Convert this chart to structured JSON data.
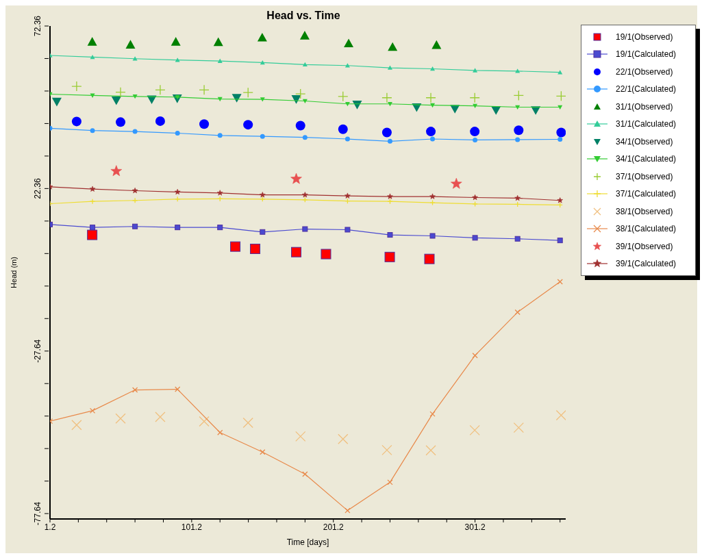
{
  "chart_data": {
    "type": "scatter",
    "title": "Head vs. Time",
    "xlabel": "Time [days]",
    "ylabel": "Head (m)",
    "xlim": [
      1.2,
      365.2
    ],
    "ylim": [
      -79.3,
      72.36
    ],
    "xticks": [
      1.2,
      {
        "value": 21.2,
        "label": null
      },
      {
        "value": 41.2,
        "label": null
      },
      {
        "value": 61.2,
        "label": null
      },
      {
        "value": 81.2,
        "label": null
      },
      101.2,
      {
        "value": 121.2,
        "label": null
      },
      {
        "value": 141.2,
        "label": null
      },
      {
        "value": 161.2,
        "label": null
      },
      {
        "value": 181.2,
        "label": null
      },
      201.2,
      {
        "value": 221.2,
        "label": null
      },
      {
        "value": 241.2,
        "label": null
      },
      {
        "value": 261.2,
        "label": null
      },
      {
        "value": 281.2,
        "label": null
      },
      301.2,
      {
        "value": 321.2,
        "label": null
      },
      {
        "value": 341.2,
        "label": null
      },
      {
        "value": 361.2,
        "label": null
      }
    ],
    "yticks": [
      72.36,
      {
        "value": 62.36,
        "label": null
      },
      {
        "value": 52.36,
        "label": null
      },
      {
        "value": 42.36,
        "label": null
      },
      {
        "value": 32.36,
        "label": null
      },
      22.36,
      {
        "value": 12.36,
        "label": null
      },
      {
        "value": 2.36,
        "label": null
      },
      {
        "value": -7.64,
        "label": null
      },
      {
        "value": -17.64,
        "label": null
      },
      -27.64,
      {
        "value": -37.64,
        "label": null
      },
      {
        "value": -47.64,
        "label": null
      },
      {
        "value": -57.64,
        "label": null
      },
      {
        "value": -67.64,
        "label": null
      },
      -77.64
    ],
    "grid": false,
    "legend": "right",
    "series": [
      {
        "name": "19/1(Observed)",
        "marker": "square",
        "color": "#ff0000",
        "x": [
          31,
          132,
          146,
          175,
          196,
          241,
          269
        ],
        "values": [
          8.1,
          4.5,
          3.8,
          2.8,
          2.2,
          1.3,
          0.7
        ]
      },
      {
        "name": "19/1(Calculated)",
        "type": "line",
        "marker": "square",
        "color": "#4a4ad0",
        "x": [
          1.2,
          31.2,
          61.2,
          91.2,
          121.2,
          151.2,
          181.2,
          211.2,
          241.2,
          271.2,
          301.2,
          331.2,
          361.2
        ],
        "values": [
          11.3,
          10.4,
          10.7,
          10.4,
          10.4,
          9.0,
          9.9,
          9.7,
          8.1,
          7.8,
          7.2,
          6.9,
          6.4
        ]
      },
      {
        "name": "22/1(Observed)",
        "marker": "circle",
        "color": "#0000ff",
        "x": [
          20,
          51,
          79,
          110,
          141,
          178,
          208,
          239,
          270,
          301,
          332,
          362
        ],
        "values": [
          43.0,
          42.8,
          43.1,
          42.2,
          42.0,
          41.7,
          40.6,
          39.6,
          39.9,
          39.9,
          40.3,
          39.6
        ]
      },
      {
        "name": "22/1(Calculated)",
        "type": "line",
        "marker": "circle",
        "color": "#3399ff",
        "x": [
          1.2,
          31.2,
          61.2,
          91.2,
          121.2,
          151.2,
          181.2,
          211.2,
          241.2,
          271.2,
          301.2,
          331.2,
          361.2
        ],
        "values": [
          40.9,
          40.2,
          39.9,
          39.4,
          38.7,
          38.4,
          38.1,
          37.6,
          36.9,
          37.6,
          37.3,
          37.4,
          37.5
        ]
      },
      {
        "name": "31/1(Observed)",
        "marker": "triangle",
        "color": "#008000",
        "x": [
          31,
          58,
          90,
          120,
          151,
          181,
          212,
          243,
          274
        ],
        "values": [
          67.5,
          66.6,
          67.5,
          67.4,
          68.8,
          69.4,
          67.0,
          65.9,
          66.5
        ]
      },
      {
        "name": "31/1(Calculated)",
        "type": "line",
        "marker": "triangle",
        "color": "#33cc99",
        "x": [
          1.2,
          31.2,
          61.2,
          91.2,
          121.2,
          151.2,
          181.2,
          211.2,
          241.2,
          271.2,
          301.2,
          331.2,
          361.2
        ],
        "values": [
          63.3,
          62.8,
          62.3,
          61.9,
          61.6,
          61.1,
          60.5,
          60.2,
          59.5,
          59.2,
          58.7,
          58.5,
          58.1
        ]
      },
      {
        "name": "34/1(Observed)",
        "marker": "triangle-down",
        "color": "#008066",
        "x": [
          6,
          48,
          73,
          91,
          133,
          175,
          218,
          260,
          287,
          316,
          344
        ],
        "values": [
          49.1,
          49.5,
          49.8,
          50.1,
          50.3,
          49.9,
          48.2,
          47.4,
          46.9,
          46.5,
          46.5
        ]
      },
      {
        "name": "34/1(Calculated)",
        "type": "line",
        "marker": "triangle-down",
        "color": "#33cc33",
        "x": [
          1.2,
          31.2,
          61.2,
          91.2,
          121.2,
          151.2,
          181.2,
          211.2,
          241.2,
          271.2,
          301.2,
          331.2,
          361.2
        ],
        "values": [
          51.4,
          51.0,
          50.7,
          50.5,
          49.9,
          49.8,
          49.3,
          48.4,
          48.4,
          48.0,
          47.8,
          47.4,
          47.4
        ]
      },
      {
        "name": "37/1(Observed)",
        "marker": "cross",
        "color": "#99cc33",
        "x": [
          20,
          51,
          79,
          110,
          141,
          178,
          208,
          239,
          270,
          301,
          332,
          362
        ],
        "values": [
          53.8,
          52.0,
          52.7,
          52.7,
          51.9,
          51.5,
          50.7,
          50.3,
          50.3,
          50.3,
          51.0,
          50.8
        ]
      },
      {
        "name": "37/1(Calculated)",
        "type": "line",
        "marker": "cross",
        "color": "#eedd33",
        "x": [
          1.2,
          31.2,
          61.2,
          91.2,
          121.2,
          151.2,
          181.2,
          211.2,
          241.2,
          271.2,
          301.2,
          331.2,
          361.2
        ],
        "values": [
          17.7,
          18.4,
          18.7,
          19.1,
          19.2,
          19.1,
          18.9,
          18.5,
          18.4,
          18.0,
          17.6,
          17.5,
          17.3
        ]
      },
      {
        "name": "38/1(Observed)",
        "marker": "x",
        "color": "#f0c080",
        "x": [
          20,
          51,
          79,
          110,
          141,
          178,
          208,
          239,
          270,
          301,
          332,
          362
        ],
        "values": [
          -50.4,
          -48.4,
          -47.9,
          -49.3,
          -49.7,
          -53.9,
          -54.7,
          -58.1,
          -58.2,
          -52.0,
          -51.2,
          -47.4
        ]
      },
      {
        "name": "38/1(Calculated)",
        "type": "line",
        "marker": "x",
        "color": "#e8894a",
        "x": [
          1.2,
          31.2,
          61.2,
          91.2,
          121.2,
          151.2,
          181.2,
          211.2,
          241.2,
          271.2,
          301.2,
          331.2,
          361.2
        ],
        "values": [
          -49.2,
          -46.0,
          -39.6,
          -39.4,
          -52.7,
          -58.7,
          -65.5,
          -76.7,
          -68.0,
          -47.0,
          -29.0,
          -15.7,
          -6.3
        ]
      },
      {
        "name": "39/1(Observed)",
        "marker": "star",
        "color": "#e85050",
        "x": [
          48,
          175,
          288
        ],
        "values": [
          27.7,
          25.3,
          23.8
        ]
      },
      {
        "name": "39/1(Calculated)",
        "type": "line",
        "marker": "star",
        "color": "#a03030",
        "x": [
          1.2,
          31.2,
          61.2,
          91.2,
          121.2,
          151.2,
          181.2,
          211.2,
          241.2,
          271.2,
          301.2,
          331.2,
          361.2
        ],
        "values": [
          22.9,
          22.2,
          21.7,
          21.3,
          21.0,
          20.4,
          20.4,
          20.1,
          19.9,
          19.9,
          19.6,
          19.4,
          18.7
        ]
      }
    ]
  }
}
